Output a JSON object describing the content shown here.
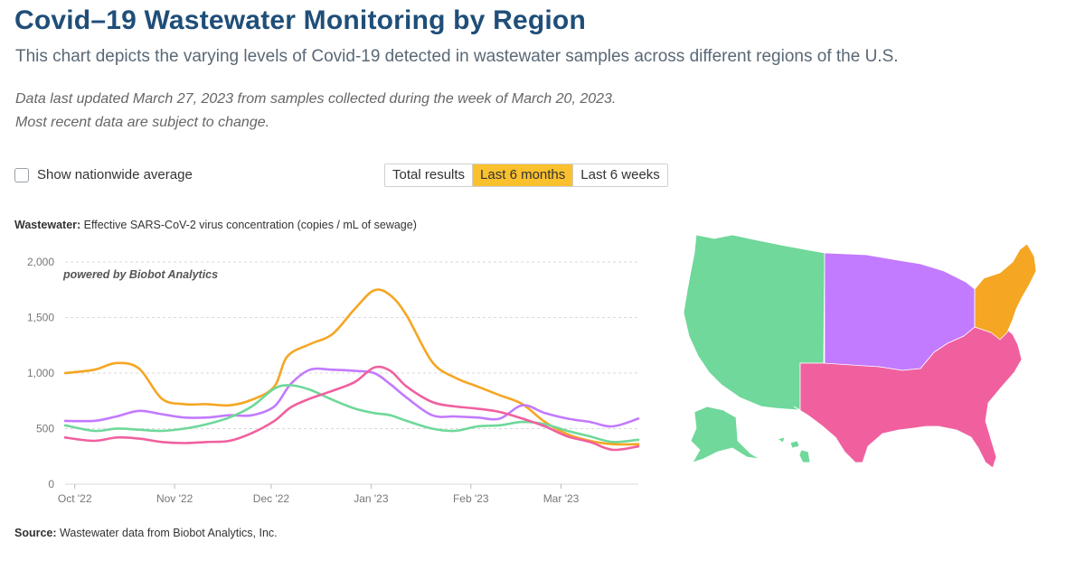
{
  "header": {
    "title": "Covid–19 Wastewater Monitoring by Region",
    "subtitle": "This chart depicts the varying levels of Covid-19 detected in wastewater samples across different regions of the U.S.",
    "note": "Data last updated March 27, 2023 from samples collected during the week of March 20, 2023. Most recent data are subject to change."
  },
  "controls": {
    "checkbox_label": "Show nationwide average",
    "checkbox_checked": false,
    "range_buttons": [
      "Total results",
      "Last 6 months",
      "Last 6 weeks"
    ],
    "active_range": "Last 6 months"
  },
  "measure": {
    "prefix": "Wastewater:",
    "description": "Effective SARS-CoV-2 virus concentration (copies / mL of sewage)"
  },
  "credit": "powered by Biobot Analytics",
  "source": {
    "prefix": "Source:",
    "text": "Wastewater data from Biobot Analytics, Inc."
  },
  "colors": {
    "northeast": "#f5a623",
    "midwest": "#c27aff",
    "south": "#f0609e",
    "west": "#6fd89a",
    "grid": "#d9d9d9",
    "axis_text": "#777777"
  },
  "chart_data": {
    "type": "line",
    "ylim": [
      0,
      2000
    ],
    "yticks": [
      0,
      500,
      1000,
      1500,
      2000
    ],
    "ytick_labels": [
      "0",
      "500",
      "1,000",
      "1,500",
      "2,000"
    ],
    "x_start": "2022-09-28",
    "x_end": "2023-03-25",
    "xticks": [
      "2022-10-01",
      "2022-11-01",
      "2022-12-01",
      "2023-01-01",
      "2023-02-01",
      "2023-03-01"
    ],
    "xtick_labels": [
      "Oct '22",
      "Nov '22",
      "Dec '22",
      "Jan '23",
      "Feb '23",
      "Mar '23"
    ],
    "grid": "horizontal dashed",
    "legend": "none (regions identified by map colors)",
    "series": [
      {
        "color_key": "northeast",
        "points": [
          [
            "2022-09-28",
            1000
          ],
          [
            "2022-10-07",
            1030
          ],
          [
            "2022-10-14",
            1090
          ],
          [
            "2022-10-21",
            1040
          ],
          [
            "2022-10-28",
            770
          ],
          [
            "2022-11-04",
            720
          ],
          [
            "2022-11-11",
            720
          ],
          [
            "2022-11-18",
            710
          ],
          [
            "2022-11-25",
            760
          ],
          [
            "2022-12-02",
            880
          ],
          [
            "2022-12-06",
            1150
          ],
          [
            "2022-12-13",
            1260
          ],
          [
            "2022-12-20",
            1350
          ],
          [
            "2022-12-27",
            1580
          ],
          [
            "2023-01-02",
            1745
          ],
          [
            "2023-01-07",
            1700
          ],
          [
            "2023-01-12",
            1520
          ],
          [
            "2023-01-20",
            1100
          ],
          [
            "2023-01-27",
            960
          ],
          [
            "2023-02-03",
            880
          ],
          [
            "2023-02-10",
            800
          ],
          [
            "2023-02-17",
            720
          ],
          [
            "2023-02-24",
            560
          ],
          [
            "2023-03-03",
            450
          ],
          [
            "2023-03-10",
            390
          ],
          [
            "2023-03-17",
            360
          ],
          [
            "2023-03-25",
            360
          ]
        ]
      },
      {
        "color_key": "midwest",
        "points": [
          [
            "2022-09-28",
            570
          ],
          [
            "2022-10-07",
            570
          ],
          [
            "2022-10-14",
            610
          ],
          [
            "2022-10-21",
            660
          ],
          [
            "2022-10-28",
            630
          ],
          [
            "2022-11-04",
            600
          ],
          [
            "2022-11-11",
            600
          ],
          [
            "2022-11-18",
            620
          ],
          [
            "2022-11-25",
            620
          ],
          [
            "2022-12-02",
            700
          ],
          [
            "2022-12-07",
            900
          ],
          [
            "2022-12-13",
            1030
          ],
          [
            "2022-12-20",
            1030
          ],
          [
            "2022-12-27",
            1020
          ],
          [
            "2023-01-02",
            1000
          ],
          [
            "2023-01-07",
            900
          ],
          [
            "2023-01-12",
            780
          ],
          [
            "2023-01-20",
            620
          ],
          [
            "2023-01-27",
            610
          ],
          [
            "2023-02-03",
            600
          ],
          [
            "2023-02-10",
            590
          ],
          [
            "2023-02-17",
            710
          ],
          [
            "2023-02-24",
            640
          ],
          [
            "2023-03-03",
            590
          ],
          [
            "2023-03-10",
            560
          ],
          [
            "2023-03-17",
            520
          ],
          [
            "2023-03-25",
            590
          ]
        ]
      },
      {
        "color_key": "south",
        "points": [
          [
            "2022-09-28",
            420
          ],
          [
            "2022-10-07",
            390
          ],
          [
            "2022-10-14",
            420
          ],
          [
            "2022-10-21",
            410
          ],
          [
            "2022-10-28",
            380
          ],
          [
            "2022-11-04",
            370
          ],
          [
            "2022-11-11",
            380
          ],
          [
            "2022-11-18",
            390
          ],
          [
            "2022-11-25",
            460
          ],
          [
            "2022-12-02",
            570
          ],
          [
            "2022-12-07",
            690
          ],
          [
            "2022-12-13",
            770
          ],
          [
            "2022-12-20",
            840
          ],
          [
            "2022-12-27",
            920
          ],
          [
            "2023-01-02",
            1050
          ],
          [
            "2023-01-07",
            1020
          ],
          [
            "2023-01-12",
            880
          ],
          [
            "2023-01-20",
            740
          ],
          [
            "2023-01-27",
            700
          ],
          [
            "2023-02-03",
            680
          ],
          [
            "2023-02-10",
            650
          ],
          [
            "2023-02-17",
            590
          ],
          [
            "2023-02-24",
            520
          ],
          [
            "2023-03-03",
            430
          ],
          [
            "2023-03-10",
            380
          ],
          [
            "2023-03-17",
            310
          ],
          [
            "2023-03-25",
            340
          ]
        ]
      },
      {
        "color_key": "west",
        "points": [
          [
            "2022-09-28",
            530
          ],
          [
            "2022-10-07",
            480
          ],
          [
            "2022-10-14",
            500
          ],
          [
            "2022-10-21",
            490
          ],
          [
            "2022-10-28",
            480
          ],
          [
            "2022-11-04",
            500
          ],
          [
            "2022-11-11",
            540
          ],
          [
            "2022-11-18",
            600
          ],
          [
            "2022-11-25",
            700
          ],
          [
            "2022-12-02",
            860
          ],
          [
            "2022-12-07",
            890
          ],
          [
            "2022-12-13",
            850
          ],
          [
            "2022-12-20",
            760
          ],
          [
            "2022-12-27",
            680
          ],
          [
            "2023-01-02",
            640
          ],
          [
            "2023-01-07",
            620
          ],
          [
            "2023-01-12",
            570
          ],
          [
            "2023-01-20",
            500
          ],
          [
            "2023-01-27",
            480
          ],
          [
            "2023-02-03",
            520
          ],
          [
            "2023-02-10",
            530
          ],
          [
            "2023-02-17",
            560
          ],
          [
            "2023-02-24",
            540
          ],
          [
            "2023-03-03",
            480
          ],
          [
            "2023-03-10",
            430
          ],
          [
            "2023-03-17",
            380
          ],
          [
            "2023-03-25",
            400
          ]
        ]
      }
    ]
  },
  "map": {
    "region_states": {
      "west": [
        "WA",
        "OR",
        "CA",
        "ID",
        "NV",
        "MT",
        "WY",
        "UT",
        "CO",
        "AZ",
        "NM",
        "AK",
        "HI"
      ],
      "midwest": [
        "ND",
        "SD",
        "NE",
        "KS",
        "MN",
        "IA",
        "MO",
        "WI",
        "IL",
        "MI",
        "IN",
        "OH"
      ],
      "south": [
        "TX",
        "OK",
        "AR",
        "LA",
        "MS",
        "AL",
        "TN",
        "KY",
        "GA",
        "FL",
        "SC",
        "NC",
        "VA",
        "WV",
        "MD",
        "DE"
      ],
      "northeast": [
        "PA",
        "NY",
        "NJ",
        "CT",
        "RI",
        "MA",
        "VT",
        "NH",
        "ME"
      ]
    }
  }
}
